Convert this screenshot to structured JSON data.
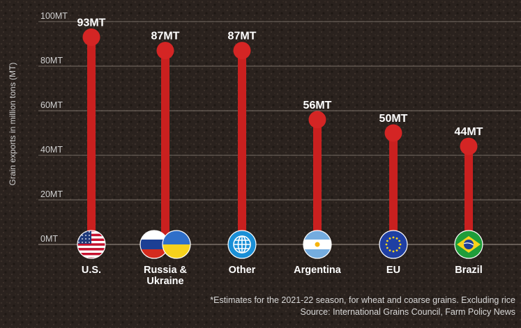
{
  "chart_data": {
    "type": "lollipop",
    "ylabel": "Grain exports in million tons (MT)",
    "ylim": [
      0,
      100
    ],
    "yticks": [
      0,
      20,
      40,
      60,
      80,
      100
    ],
    "ytick_labels": [
      "0MT",
      "20MT",
      "40MT",
      "60MT",
      "80MT",
      "100MT"
    ],
    "categories": [
      "U.S.",
      "Russia & Ukraine",
      "Other",
      "Argentina",
      "EU",
      "Brazil"
    ],
    "category_lines": [
      [
        "U.S."
      ],
      [
        "Russia &",
        "Ukraine"
      ],
      [
        "Other"
      ],
      [
        "Argentina"
      ],
      [
        "EU"
      ],
      [
        "Brazil"
      ]
    ],
    "values": [
      93,
      87,
      87,
      56,
      50,
      44
    ],
    "value_labels": [
      "93MT",
      "87MT",
      "87MT",
      "56MT",
      "50MT",
      "44MT"
    ],
    "grid": true,
    "colors": {
      "stem": "#c9201f",
      "head": "#d42524",
      "background": "#2a221e",
      "grid": "#7a7068",
      "text": "#ffffff"
    },
    "flags": [
      [
        "us-flag"
      ],
      [
        "russia-flag",
        "ukraine-flag"
      ],
      [
        "globe-icon"
      ],
      [
        "argentina-flag"
      ],
      [
        "eu-flag"
      ],
      [
        "brazil-flag"
      ]
    ]
  },
  "footnote": "*Estimates for the 2021-22 season, for wheat and coarse grains. Excluding rice",
  "source": "Source: International Grains Council, Farm Policy News"
}
